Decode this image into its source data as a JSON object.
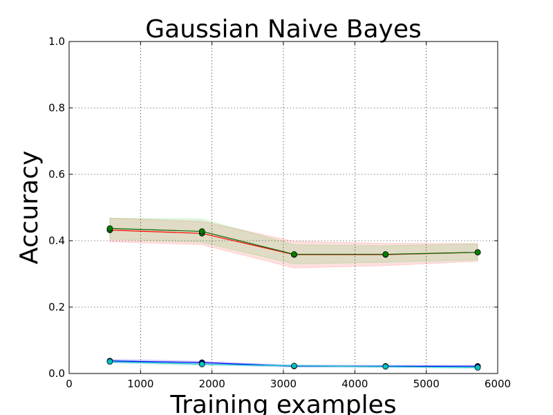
{
  "chart_data": {
    "type": "line",
    "title": "Gaussian Naive Bayes",
    "xlabel": "Training examples",
    "ylabel": "Accuracy",
    "xlim": [
      0,
      6000
    ],
    "ylim": [
      0.0,
      1.0
    ],
    "xticks": [
      0,
      1000,
      2000,
      3000,
      4000,
      5000,
      6000
    ],
    "xtick_labels": [
      "0",
      "1000",
      "2000",
      "3000",
      "4000",
      "5000",
      "6000"
    ],
    "yticks": [
      0.0,
      0.2,
      0.4,
      0.6,
      0.8,
      1.0
    ],
    "ytick_labels": [
      "0.0",
      "0.2",
      "0.4",
      "0.6",
      "0.8",
      "1.0"
    ],
    "grid": true,
    "x": [
      570,
      1860,
      3150,
      4430,
      5720
    ],
    "series": [
      {
        "color": "#ff0000",
        "band_color": "#ff0000",
        "marker_color": "#008000",
        "values": [
          0.432,
          0.422,
          0.358,
          0.358,
          0.365
        ],
        "lower": [
          0.397,
          0.388,
          0.318,
          0.325,
          0.338
        ],
        "upper": [
          0.468,
          0.458,
          0.398,
          0.392,
          0.392
        ]
      },
      {
        "color": "#006400",
        "band_color": "#00c000",
        "marker_color": "#008000",
        "values": [
          0.437,
          0.428,
          0.359,
          0.359,
          0.365
        ],
        "lower": [
          0.405,
          0.395,
          0.33,
          0.335,
          0.342
        ],
        "upper": [
          0.468,
          0.465,
          0.388,
          0.385,
          0.39
        ]
      },
      {
        "color": "#0000ff",
        "band_color": "#0000ff",
        "marker_color": "#000080",
        "values": [
          0.038,
          0.033,
          0.022,
          0.022,
          0.022
        ],
        "lower": [
          0.033,
          0.029,
          0.019,
          0.019,
          0.019
        ],
        "upper": [
          0.043,
          0.037,
          0.025,
          0.025,
          0.025
        ]
      },
      {
        "color": "#00bfbf",
        "band_color": "#00bfbf",
        "marker_color": "#00bfbf",
        "values": [
          0.036,
          0.028,
          0.023,
          0.021,
          0.018
        ],
        "lower": [
          0.032,
          0.024,
          0.02,
          0.018,
          0.015
        ],
        "upper": [
          0.04,
          0.032,
          0.026,
          0.024,
          0.021
        ]
      }
    ]
  }
}
